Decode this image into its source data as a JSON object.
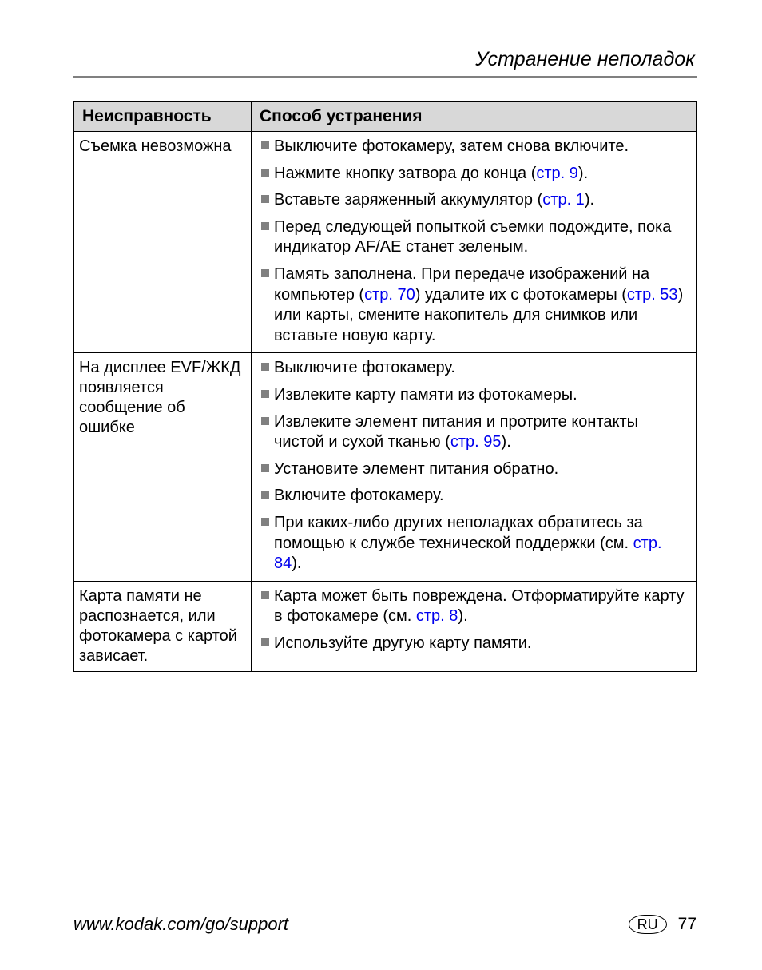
{
  "header": {
    "section_title": "Устранение неполадок"
  },
  "table": {
    "headers": {
      "problem": "Неисправность",
      "solution": "Способ устранения"
    },
    "rows": [
      {
        "problem": "Съемка невозможна",
        "solutions": [
          {
            "parts": [
              {
                "t": "Выключите фотокамеру, затем снова включите."
              }
            ]
          },
          {
            "parts": [
              {
                "t": "Нажмите кнопку затвора до конца ("
              },
              {
                "t": "стр. 9",
                "link": true
              },
              {
                "t": ")."
              }
            ]
          },
          {
            "parts": [
              {
                "t": "Вставьте заряженный аккумулятор ("
              },
              {
                "t": "стр. 1",
                "link": true
              },
              {
                "t": ")."
              }
            ]
          },
          {
            "parts": [
              {
                "t": "Перед следующей попыткой съемки подождите, пока индикатор AF/AE станет зеленым."
              }
            ]
          },
          {
            "parts": [
              {
                "t": "Память заполнена. При передаче изображений на компьютер ("
              },
              {
                "t": "стр. 70",
                "link": true
              },
              {
                "t": ") удалите их с фотокамеры ("
              },
              {
                "t": "стр. 53",
                "link": true
              },
              {
                "t": ") или карты, смените накопитель для снимков или вставьте новую карту."
              }
            ]
          }
        ]
      },
      {
        "problem": "На дисплее EVF/ЖКД появляется сообщение об ошибке",
        "solutions": [
          {
            "parts": [
              {
                "t": "Выключите фотокамеру."
              }
            ]
          },
          {
            "parts": [
              {
                "t": "Извлеките карту памяти из фотокамеры."
              }
            ]
          },
          {
            "parts": [
              {
                "t": "Извлеките элемент питания и протрите контакты чистой и сухой тканью ("
              },
              {
                "t": "стр. 95",
                "link": true
              },
              {
                "t": ")."
              }
            ]
          },
          {
            "parts": [
              {
                "t": "Установите элемент питания обратно."
              }
            ]
          },
          {
            "parts": [
              {
                "t": "Включите фотокамеру."
              }
            ]
          },
          {
            "parts": [
              {
                "t": "При каких-либо других неполадках обратитесь за помощью к службе технической поддержки (см. "
              },
              {
                "t": "стр. 84",
                "link": true
              },
              {
                "t": ")."
              }
            ]
          }
        ]
      },
      {
        "problem": "Карта памяти не распознается, или фотокамера с картой зависает.",
        "solutions": [
          {
            "parts": [
              {
                "t": "Карта может быть повреждена. Отформатируйте карту в фотокамере (см. "
              },
              {
                "t": "стр. 8",
                "link": true
              },
              {
                "t": ")."
              }
            ]
          },
          {
            "parts": [
              {
                "t": "Используйте другую карту памяти."
              }
            ]
          }
        ]
      }
    ]
  },
  "footer": {
    "url": "www.kodak.com/go/support",
    "lang_badge": "RU",
    "page_number": "77"
  },
  "style": {
    "link_color": "#0000ee",
    "bullet_color": "#808080",
    "header_bg": "#d8d8d8"
  }
}
